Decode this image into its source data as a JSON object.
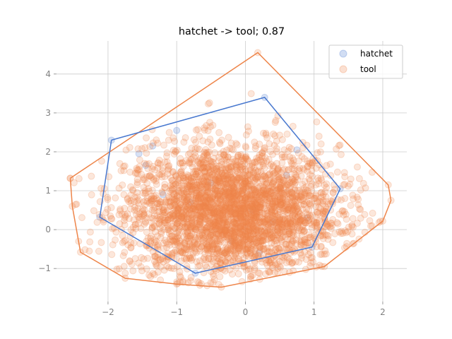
{
  "chart_data": {
    "type": "scatter",
    "title": "hatchet -> tool; 0.87",
    "xlabel": "",
    "ylabel": "",
    "xlim": [
      -2.75,
      2.35
    ],
    "ylim": [
      -1.85,
      4.85
    ],
    "x_ticks": [
      -2,
      -1,
      0,
      1,
      2
    ],
    "y_ticks": [
      -1,
      0,
      1,
      2,
      3,
      4
    ],
    "x_tick_labels": [
      "−2",
      "−1",
      "0",
      "1",
      "2"
    ],
    "y_tick_labels": [
      "−1",
      "0",
      "1",
      "2",
      "3",
      "4"
    ],
    "grid": true,
    "legend_position": "top-right",
    "series": [
      {
        "name": "hatchet",
        "color": "#4878cf",
        "marker": "circle",
        "hull": [
          [
            -1.95,
            2.3
          ],
          [
            0.28,
            3.4
          ],
          [
            1.38,
            1.05
          ],
          [
            0.97,
            -0.45
          ],
          [
            -0.73,
            -1.12
          ],
          [
            -2.12,
            0.32
          ],
          [
            -1.95,
            2.3
          ]
        ],
        "points": [
          [
            -1.95,
            2.3
          ],
          [
            0.28,
            3.4
          ],
          [
            1.38,
            1.05
          ],
          [
            0.97,
            -0.45
          ],
          [
            -0.73,
            -1.12
          ],
          [
            -2.12,
            0.32
          ],
          [
            -1.0,
            2.55
          ],
          [
            -1.55,
            1.95
          ],
          [
            -1.35,
            2.15
          ],
          [
            -1.45,
            1.65
          ],
          [
            0.75,
            2.05
          ],
          [
            -0.5,
            1.2
          ],
          [
            0.1,
            0.5
          ],
          [
            -0.2,
            -0.3
          ],
          [
            0.4,
            0.2
          ],
          [
            -0.8,
            0.7
          ],
          [
            0.6,
            1.4
          ],
          [
            -1.2,
            0.9
          ],
          [
            0.2,
            -0.6
          ],
          [
            0.9,
            0.3
          ]
        ]
      },
      {
        "name": "tool",
        "color": "#ee854a",
        "marker": "circle",
        "hull": [
          [
            -2.55,
            1.32
          ],
          [
            0.18,
            4.55
          ],
          [
            2.08,
            1.15
          ],
          [
            2.12,
            0.75
          ],
          [
            2.0,
            0.22
          ],
          [
            1.15,
            -0.95
          ],
          [
            -0.35,
            -1.48
          ],
          [
            -1.0,
            -1.4
          ],
          [
            -1.75,
            -1.25
          ],
          [
            -2.4,
            -0.58
          ],
          [
            -2.52,
            0.6
          ],
          [
            -2.55,
            1.32
          ]
        ],
        "points": []
      }
    ]
  }
}
